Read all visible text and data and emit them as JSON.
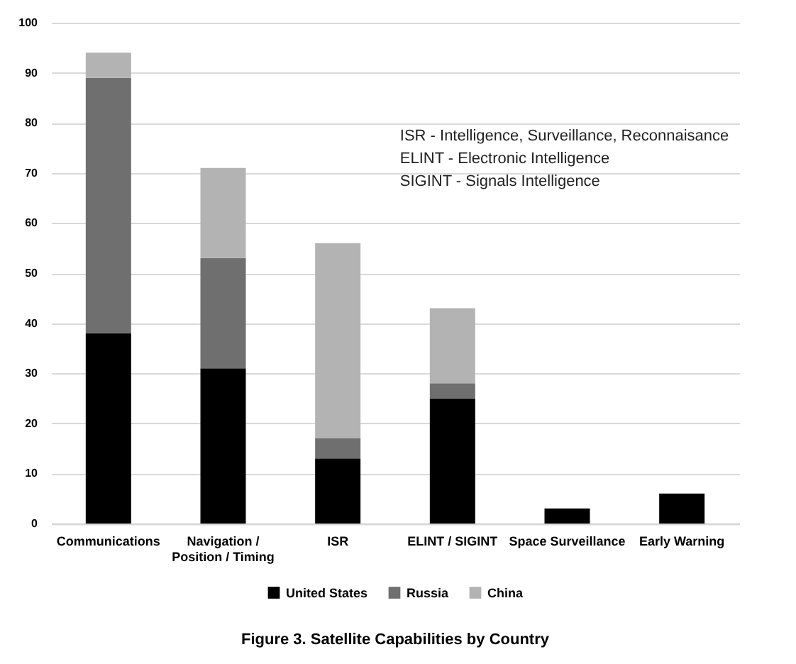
{
  "chart_data": {
    "type": "bar",
    "title": "Figure 3.  Satellite Capabilities by Country",
    "categories": [
      "Communications",
      "Navigation / Position / Timing",
      "ISR",
      "ELINT / SIGINT",
      "Space Surveillance",
      "Early Warning"
    ],
    "series": [
      {
        "name": "United States",
        "color": "#000000",
        "values": [
          38,
          31,
          13,
          25,
          3,
          6
        ]
      },
      {
        "name": "Russia",
        "color": "#6f6f6f",
        "values": [
          51,
          22,
          4,
          3,
          null,
          null
        ]
      },
      {
        "name": "China",
        "color": "#b3b3b3",
        "values": [
          5,
          18,
          39,
          15,
          null,
          null
        ]
      }
    ],
    "stacked": true,
    "ylim": [
      0,
      100
    ],
    "yticks": [
      0,
      10,
      20,
      30,
      40,
      50,
      60,
      70,
      80,
      90,
      100
    ],
    "grid": "y",
    "legend": "bottom",
    "annotations": [
      "ISR - Intelligence, Surveillance, Reconnaisance",
      "ELINT - Electronic Intelligence",
      "SIGINT - Signals Intelligence"
    ]
  }
}
